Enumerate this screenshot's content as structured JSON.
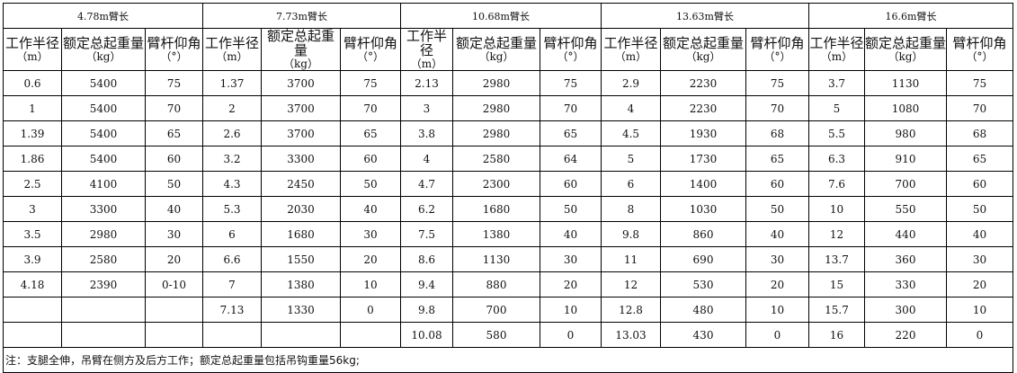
{
  "column_headers": [
    {
      "label": "工作半径",
      "unit": "（m）"
    },
    {
      "label": "额定总起重量",
      "unit": "（kg）"
    },
    {
      "label": "臂杆仰角",
      "unit": "（°）"
    }
  ],
  "groups": [
    {
      "title": "4.78m臂长",
      "rows": [
        [
          "0.6",
          "5400",
          "75"
        ],
        [
          "1",
          "5400",
          "70"
        ],
        [
          "1.39",
          "5400",
          "65"
        ],
        [
          "1.86",
          "5400",
          "60"
        ],
        [
          "2.5",
          "4100",
          "50"
        ],
        [
          "3",
          "3300",
          "40"
        ],
        [
          "3.5",
          "2980",
          "30"
        ],
        [
          "3.9",
          "2580",
          "20"
        ],
        [
          "4.18",
          "2390",
          "0-10"
        ],
        [
          "",
          "",
          ""
        ],
        [
          "",
          "",
          ""
        ]
      ]
    },
    {
      "title": "7.73m臂长",
      "rows": [
        [
          "1.37",
          "3700",
          "75"
        ],
        [
          "2",
          "3700",
          "70"
        ],
        [
          "2.6",
          "3700",
          "65"
        ],
        [
          "3.2",
          "3300",
          "60"
        ],
        [
          "4.3",
          "2450",
          "50"
        ],
        [
          "5.3",
          "2030",
          "40"
        ],
        [
          "6",
          "1680",
          "30"
        ],
        [
          "6.6",
          "1550",
          "20"
        ],
        [
          "7",
          "1380",
          "10"
        ],
        [
          "7.13",
          "1330",
          "0"
        ],
        [
          "",
          "",
          ""
        ]
      ]
    },
    {
      "title": "10.68m臂长",
      "rows": [
        [
          "2.13",
          "2980",
          "75"
        ],
        [
          "3",
          "2980",
          "70"
        ],
        [
          "3.8",
          "2980",
          "65"
        ],
        [
          "4",
          "2580",
          "64"
        ],
        [
          "4.7",
          "2300",
          "60"
        ],
        [
          "6.2",
          "1680",
          "50"
        ],
        [
          "7.5",
          "1380",
          "40"
        ],
        [
          "8.6",
          "1130",
          "30"
        ],
        [
          "9.4",
          "880",
          "20"
        ],
        [
          "9.8",
          "700",
          "10"
        ],
        [
          "10.08",
          "580",
          "0"
        ]
      ]
    },
    {
      "title": "13.63m臂长",
      "rows": [
        [
          "2.9",
          "2230",
          "75"
        ],
        [
          "4",
          "2230",
          "70"
        ],
        [
          "4.5",
          "1930",
          "68"
        ],
        [
          "5",
          "1730",
          "65"
        ],
        [
          "6",
          "1400",
          "60"
        ],
        [
          "8",
          "1030",
          "50"
        ],
        [
          "9.8",
          "860",
          "40"
        ],
        [
          "11",
          "690",
          "30"
        ],
        [
          "12",
          "530",
          "20"
        ],
        [
          "12.8",
          "480",
          "10"
        ],
        [
          "13.03",
          "430",
          "0"
        ]
      ]
    },
    {
      "title": "16.6m臂长",
      "rows": [
        [
          "3.7",
          "1130",
          "75"
        ],
        [
          "5",
          "1080",
          "70"
        ],
        [
          "5.5",
          "980",
          "68"
        ],
        [
          "6.3",
          "910",
          "65"
        ],
        [
          "7.6",
          "700",
          "60"
        ],
        [
          "10",
          "550",
          "50"
        ],
        [
          "12",
          "440",
          "40"
        ],
        [
          "13.7",
          "360",
          "30"
        ],
        [
          "15",
          "330",
          "20"
        ],
        [
          "15.7",
          "300",
          "10"
        ],
        [
          "16",
          "220",
          "0"
        ]
      ]
    }
  ],
  "note": "注：支腿全伸，吊臂在侧方及后方工作；额定总起重量包括吊钩重量56kg;"
}
